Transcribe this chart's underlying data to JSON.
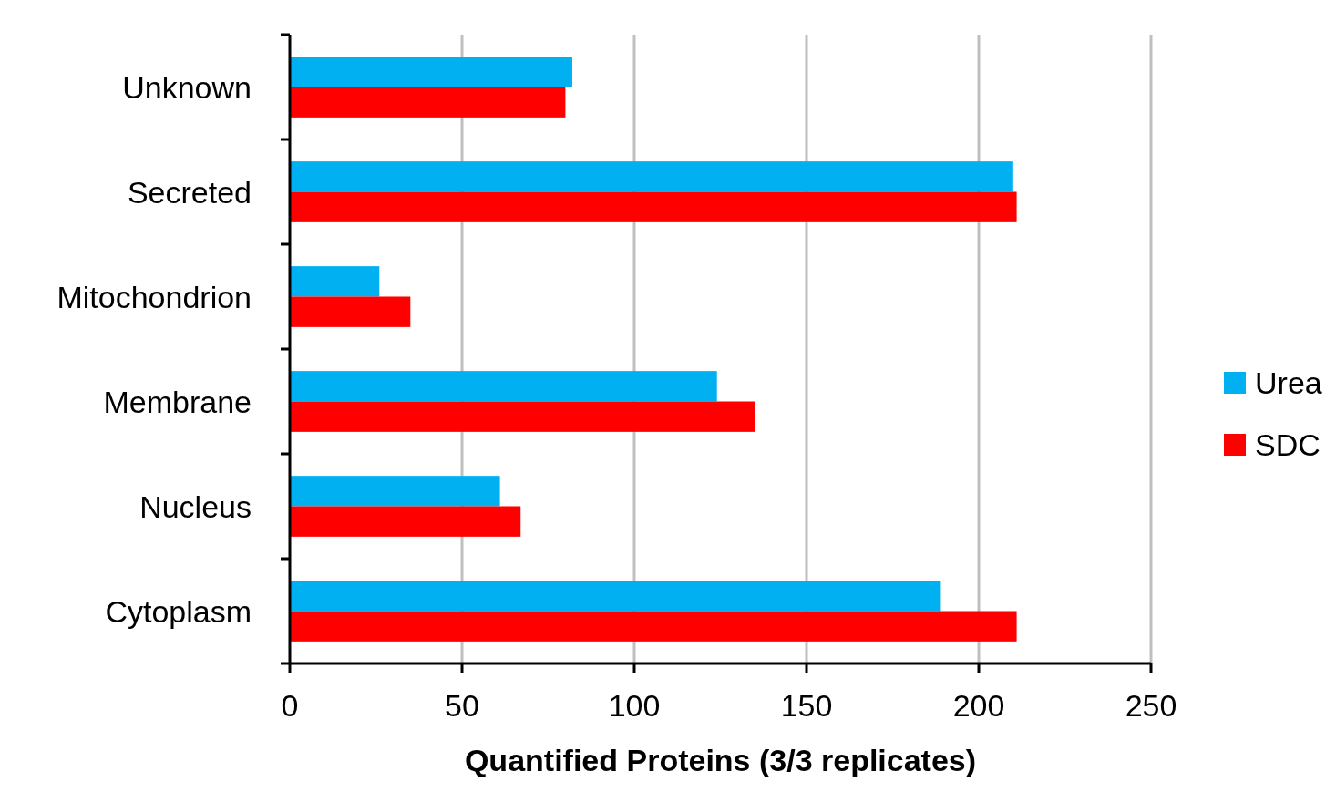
{
  "chart_data": {
    "type": "bar",
    "orientation": "horizontal",
    "xlabel": "Quantified Proteins (3/3 replicates)",
    "categories": [
      "Unknown",
      "Secreted",
      "Mitochondrion",
      "Membrane",
      "Nucleus",
      "Cytoplasm"
    ],
    "series": [
      {
        "name": "Urea",
        "color": "#00b0f0",
        "values": [
          82,
          210,
          26,
          124,
          61,
          189
        ]
      },
      {
        "name": "SDC",
        "color": "#ff0000",
        "values": [
          80,
          211,
          35,
          135,
          67,
          211
        ]
      }
    ],
    "xlim": [
      0,
      250
    ],
    "xticks": [
      0,
      50,
      100,
      150,
      200,
      250
    ],
    "grid": "x",
    "legend": "right"
  }
}
